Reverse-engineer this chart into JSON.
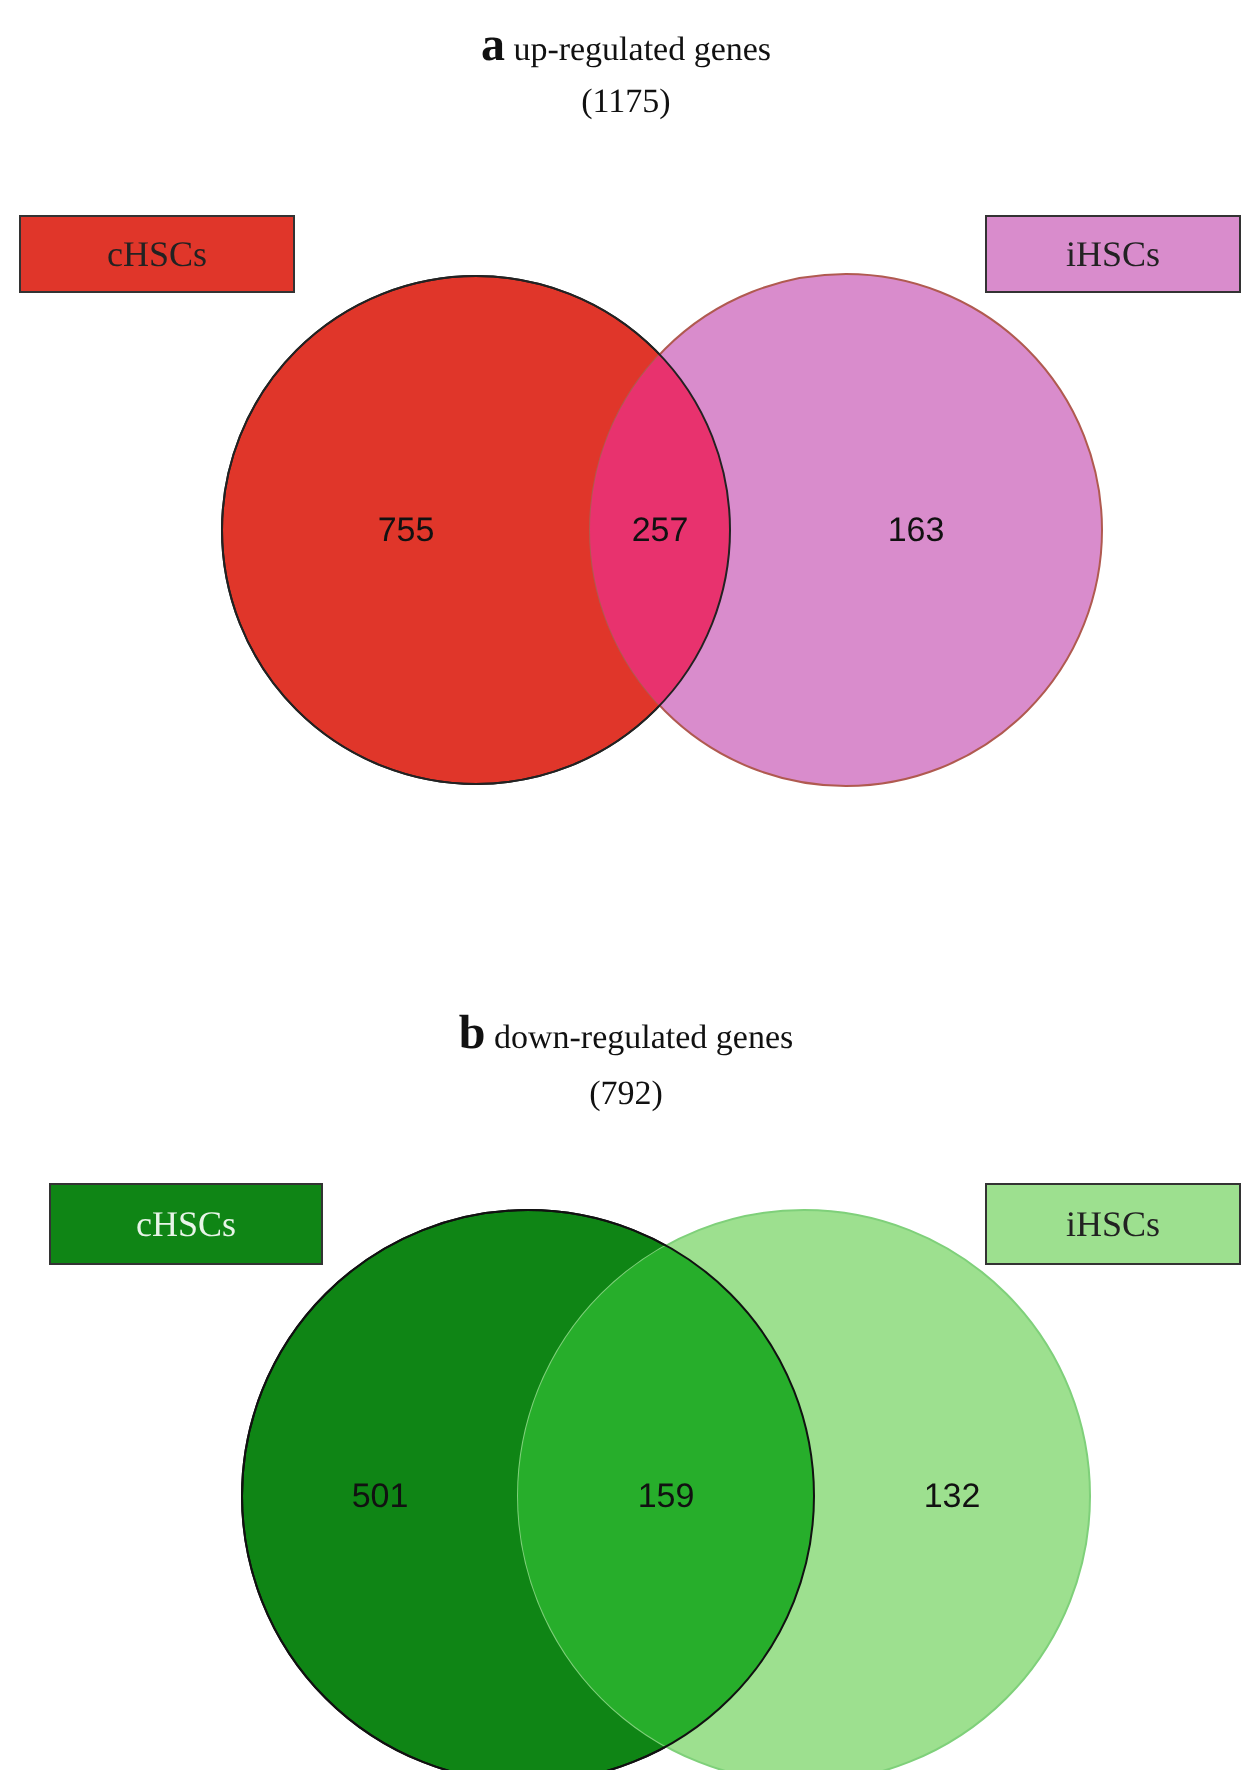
{
  "chart_data": [
    {
      "type": "other",
      "title": "a",
      "subtitle": "up-regulated genes",
      "annotations": [
        "(1175)"
      ],
      "categories": [
        "cHSCs",
        null,
        "iHSCs"
      ],
      "values": [
        755,
        257,
        163
      ],
      "colors": [
        "#e0362a",
        "#e8326e",
        "#d98ccc"
      ],
      "data_labels": true
    },
    {
      "type": "other",
      "title": "b",
      "subtitle": "down-regulated genes",
      "annotations": [
        "(792)"
      ],
      "categories": [
        "cHSCs",
        null,
        "iHSCs"
      ],
      "values": [
        501,
        159,
        132
      ],
      "colors": [
        "#0f8515",
        "#27ae2b",
        "#9de08f"
      ],
      "data_labels": true
    }
  ]
}
